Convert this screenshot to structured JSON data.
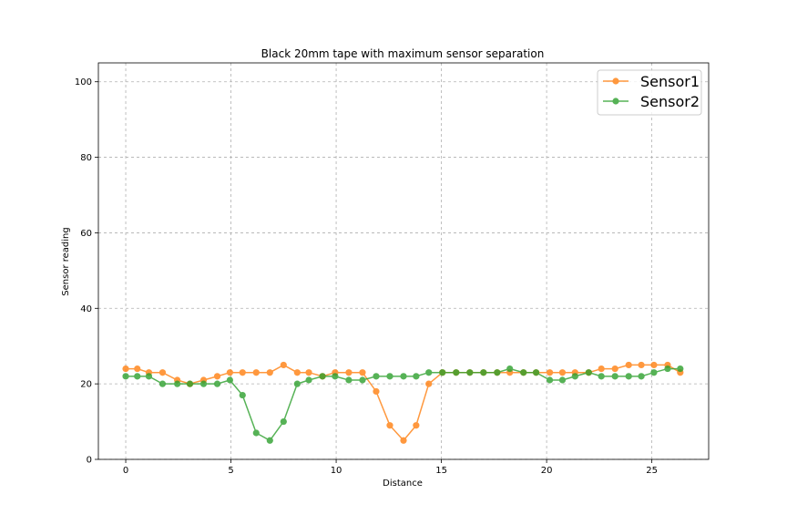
{
  "chart_data": {
    "type": "line",
    "title": "Black 20mm tape with maximum sensor separation",
    "xlabel": "Distance",
    "ylabel": "Sensor reading",
    "xlim": [
      -1.3,
      27.7
    ],
    "ylim": [
      0,
      105
    ],
    "xticks": [
      0,
      5,
      10,
      15,
      20,
      25
    ],
    "yticks": [
      0,
      20,
      40,
      60,
      80,
      100
    ],
    "grid": true,
    "legend_position": "top-right",
    "x": [
      0,
      0.55,
      1.1,
      1.75,
      2.45,
      3.05,
      3.7,
      4.35,
      4.95,
      5.55,
      6.2,
      6.85,
      7.5,
      8.15,
      8.7,
      9.35,
      9.95,
      10.6,
      11.25,
      11.9,
      12.55,
      13.2,
      13.8,
      14.4,
      15.05,
      15.7,
      16.35,
      17.0,
      17.65,
      18.25,
      18.9,
      19.5,
      20.15,
      20.75,
      21.35,
      22.0,
      22.6,
      23.25,
      23.9,
      24.5,
      25.1,
      25.75,
      26.35
    ],
    "series": [
      {
        "name": "Sensor1",
        "color": "#ff7f0e",
        "values": [
          24,
          24,
          23,
          23,
          21,
          20,
          21,
          22,
          23,
          23,
          23,
          23,
          25,
          23,
          23,
          22,
          23,
          23,
          23,
          18,
          9,
          5,
          9,
          20,
          23,
          23,
          23,
          23,
          23,
          23,
          23,
          23,
          23,
          23,
          23,
          23,
          24,
          24,
          25,
          25,
          25,
          25,
          23
        ]
      },
      {
        "name": "Sensor2",
        "color": "#2ca02c",
        "values": [
          22,
          22,
          22,
          20,
          20,
          20,
          20,
          20,
          21,
          17,
          7,
          5,
          10,
          20,
          21,
          22,
          22,
          21,
          21,
          22,
          22,
          22,
          22,
          23,
          23,
          23,
          23,
          23,
          23,
          24,
          23,
          23,
          21,
          21,
          22,
          23,
          22,
          22,
          22,
          22,
          23,
          24,
          24
        ]
      }
    ]
  }
}
